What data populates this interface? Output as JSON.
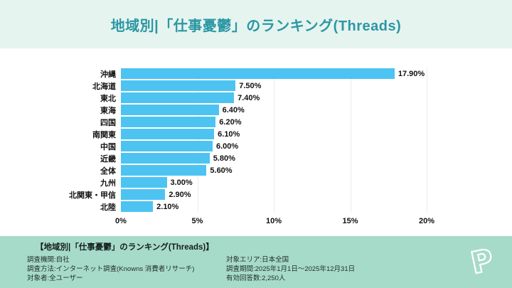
{
  "header": {
    "title": "地域別|「仕事憂鬱」のランキング(Threads)"
  },
  "chart_data": {
    "type": "bar",
    "orientation": "horizontal",
    "title": "地域別|「仕事憂鬱」のランキング(Threads)",
    "categories": [
      "沖縄",
      "北海道",
      "東北",
      "東海",
      "四国",
      "南関東",
      "中国",
      "近畿",
      "全体",
      "九州",
      "北関東・甲信",
      "北陸"
    ],
    "values": [
      17.9,
      7.5,
      7.4,
      6.4,
      6.2,
      6.1,
      6.0,
      5.8,
      5.6,
      3.0,
      2.9,
      2.1
    ],
    "value_labels": [
      "17.90%",
      "7.50%",
      "7.40%",
      "6.40%",
      "6.20%",
      "6.10%",
      "6.00%",
      "5.80%",
      "5.60%",
      "3.00%",
      "2.90%",
      "2.10%"
    ],
    "xlabel": "",
    "ylabel": "",
    "xlim": [
      0,
      20
    ],
    "xticks": [
      0,
      5,
      10,
      15,
      20
    ],
    "xtick_labels": [
      "0%",
      "5%",
      "10%",
      "15%",
      "20%"
    ],
    "grid": true,
    "bar_color": "#4dc3f2",
    "legend": null
  },
  "footer": {
    "heading": "【地域別|「仕事憂鬱」のランキング(Threads)】",
    "left_lines": [
      "調査機関:自社",
      "調査方法:インターネット調査(Knowns 消費者リサーチ)",
      "対象者:全ユーザー"
    ],
    "right_lines": [
      "対象エリア:日本全国",
      "調査期間:2025年1月1日〜2025年12月31日",
      "有効回答数:2,250人"
    ],
    "logo_letter": "P"
  },
  "colors": {
    "header_bg": "#e6f4f0",
    "title_text": "#2b97a3",
    "bar": "#4dc3f2",
    "footer_bg": "#a7dbc9"
  }
}
